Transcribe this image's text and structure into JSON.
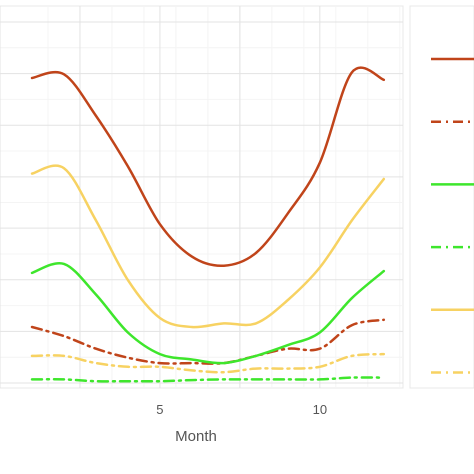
{
  "chart_data": {
    "type": "line",
    "title": "",
    "xlabel": "Month",
    "ylabel": "",
    "xlim": [
      0,
      12.6
    ],
    "ylim": [
      0,
      100
    ],
    "x_ticks": [
      5,
      10
    ],
    "y_ticks": [
      0,
      14.3,
      28.6,
      42.9,
      57.1,
      71.4,
      85.7,
      100
    ],
    "grid": true,
    "legend_position": "right",
    "x": [
      1,
      2,
      3,
      4,
      5,
      6,
      7,
      8,
      9,
      10,
      11,
      12
    ],
    "series": [
      {
        "color": "#c0441a",
        "dash": "solid",
        "values": [
          84.5,
          85.5,
          74,
          60,
          44,
          35,
          32.5,
          36,
          47,
          61,
          86,
          84
        ]
      },
      {
        "color": "#c0441a",
        "dash": "dashdot",
        "values": [
          15.5,
          13,
          9.5,
          7,
          5.5,
          5.5,
          5.5,
          7.5,
          9.5,
          9.5,
          16,
          17.5
        ]
      },
      {
        "color": "#f7d262",
        "dash": "solid",
        "values": [
          58,
          59.5,
          45,
          28.5,
          18,
          15.5,
          16.5,
          16.5,
          23,
          32,
          45,
          56.5
        ]
      },
      {
        "color": "#3ee62c",
        "dash": "dashdot",
        "values": [
          1,
          1,
          0.5,
          0.5,
          0.5,
          0.8,
          1,
          1,
          1,
          1,
          1.5,
          1.5
        ]
      },
      {
        "color": "#3ee62c",
        "dash": "solid",
        "values": [
          30.5,
          33,
          24.5,
          14,
          8,
          6.5,
          5.5,
          7.5,
          10.5,
          14,
          23.5,
          31
        ]
      },
      {
        "color": "#f7d262",
        "dash": "dashdot",
        "values": [
          7.5,
          7.5,
          5.5,
          4.5,
          4.5,
          3.5,
          3,
          4,
          4,
          4.5,
          7.5,
          8
        ]
      }
    ],
    "legend": [
      {
        "color": "#c0441a",
        "dash": "solid"
      },
      {
        "color": "#c0441a",
        "dash": "dashdot"
      },
      {
        "color": "#3ee62c",
        "dash": "solid"
      },
      {
        "color": "#3ee62c",
        "dash": "dashdot"
      },
      {
        "color": "#f7d262",
        "dash": "solid"
      },
      {
        "color": "#f7d262",
        "dash": "dashdot"
      }
    ]
  }
}
